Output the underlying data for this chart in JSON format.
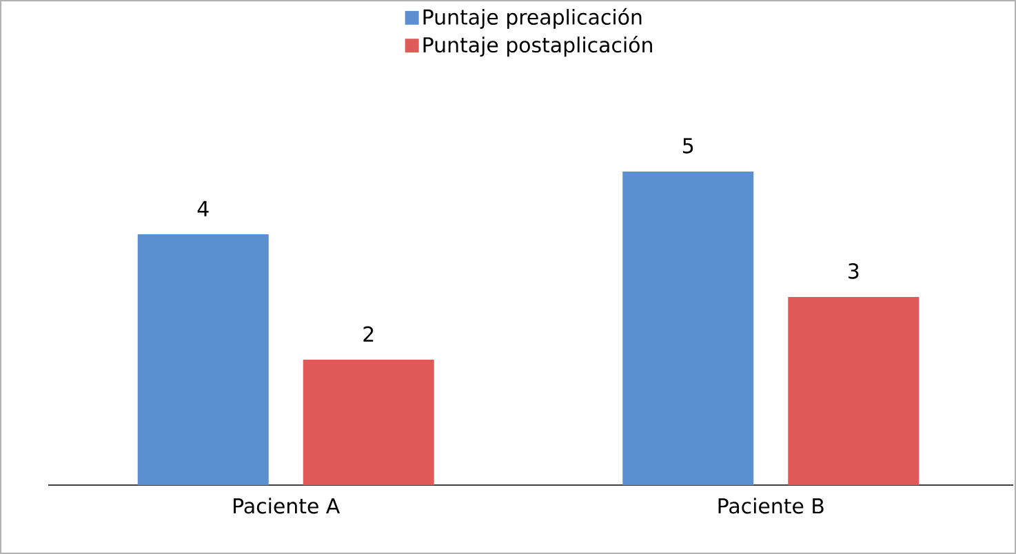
{
  "chart_data": {
    "type": "bar",
    "categories": [
      "Paciente A",
      "Paciente B"
    ],
    "series": [
      {
        "name": "Puntaje preaplicación",
        "color": "#5b8fd0",
        "values": [
          4,
          5
        ]
      },
      {
        "name": "Puntaje postaplicación",
        "color": "#e05a5a",
        "values": [
          2,
          3
        ]
      }
    ],
    "data_labels": true,
    "legend": "top"
  }
}
